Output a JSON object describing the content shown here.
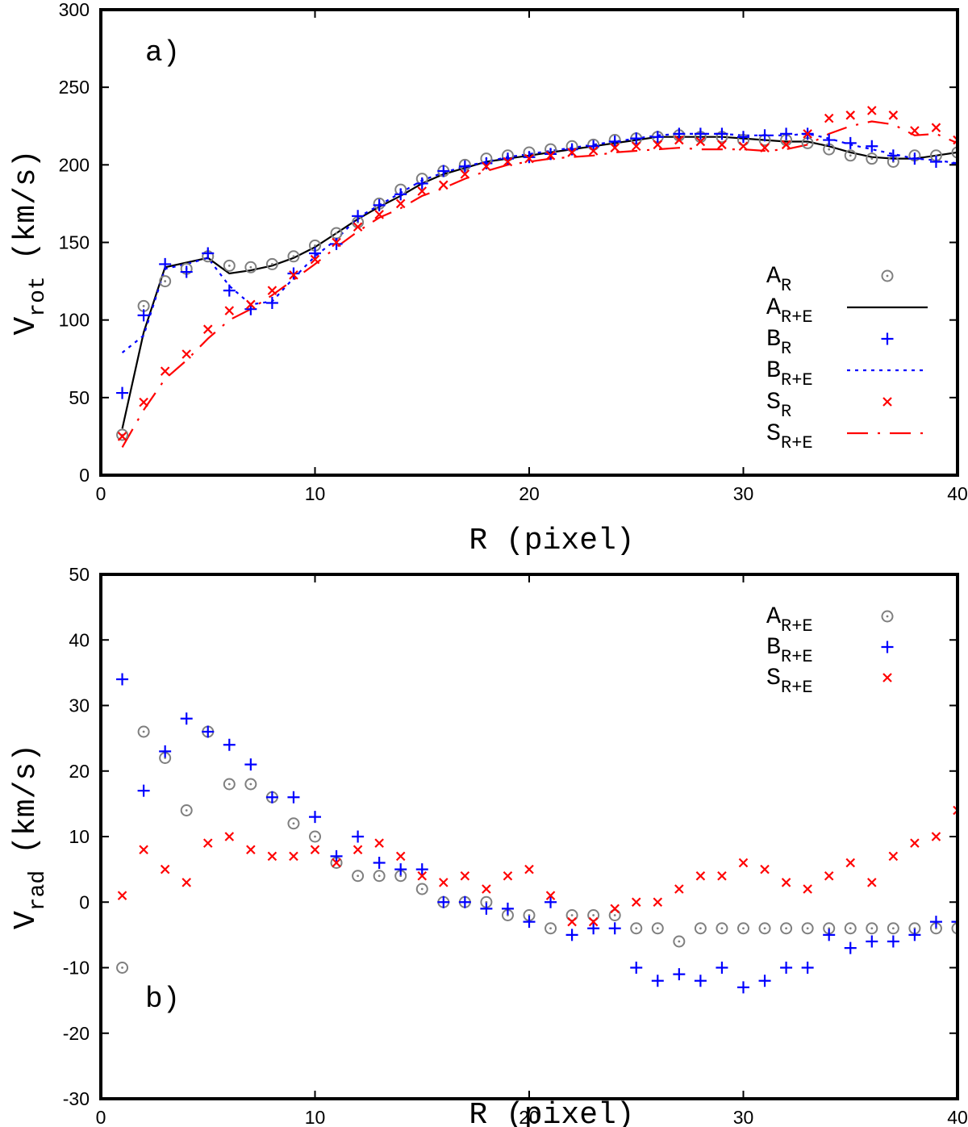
{
  "colors": {
    "A": "#7f7f7f",
    "A_line": "#000000",
    "B": "#0000ff",
    "S": "#ff0000"
  },
  "chart_data": [
    {
      "type": "line",
      "panel_label": "a)",
      "xlabel": "R (pixel)",
      "ylabel_main": "V",
      "ylabel_sub": "rot",
      "ylabel_unit": "(km/s)",
      "xlim": [
        0,
        40
      ],
      "ylim": [
        0,
        300
      ],
      "xticks": [
        0,
        10,
        20,
        30,
        40
      ],
      "yticks": [
        0,
        50,
        100,
        150,
        200,
        250,
        300
      ],
      "legend_position": "right",
      "x": [
        1,
        2,
        3,
        4,
        5,
        6,
        7,
        8,
        9,
        10,
        11,
        12,
        13,
        14,
        15,
        16,
        17,
        18,
        19,
        20,
        21,
        22,
        23,
        24,
        25,
        26,
        27,
        28,
        29,
        30,
        31,
        32,
        33,
        34,
        35,
        36,
        37,
        38,
        39,
        40
      ],
      "series": [
        {
          "name": "A_R",
          "label_main": "A",
          "label_sub": "R",
          "style": "circle",
          "color_key": "A",
          "values": [
            26,
            109,
            125,
            133,
            141,
            135,
            134,
            136,
            141,
            148,
            156,
            163,
            175,
            184,
            191,
            196,
            200,
            204,
            206,
            208,
            210,
            212,
            213,
            216,
            217,
            218,
            219,
            218,
            218,
            216,
            216,
            216,
            214,
            210,
            206,
            204,
            202,
            206,
            206,
            208
          ]
        },
        {
          "name": "A_R+E",
          "label_main": "A",
          "label_sub": "R+E",
          "style": "solid",
          "color_key": "A_line",
          "values": [
            30,
            92,
            134,
            137,
            140,
            130,
            132,
            135,
            140,
            147,
            156,
            165,
            173,
            180,
            188,
            194,
            198,
            202,
            204,
            206,
            208,
            210,
            212,
            214,
            216,
            218,
            218,
            218,
            218,
            217,
            216,
            215,
            215,
            212,
            208,
            205,
            204,
            204,
            206,
            208
          ]
        },
        {
          "name": "B_R",
          "label_main": "B",
          "label_sub": "R",
          "style": "plus",
          "color_key": "B",
          "values": [
            53,
            103,
            136,
            131,
            143,
            119,
            107,
            111,
            130,
            143,
            149,
            167,
            174,
            181,
            188,
            196,
            199,
            201,
            204,
            205,
            207,
            210,
            212,
            215,
            217,
            218,
            220,
            220,
            220,
            218,
            219,
            220,
            220,
            216,
            214,
            212,
            206,
            204,
            202,
            201
          ]
        },
        {
          "name": "B_R+E",
          "label_main": "B",
          "label_sub": "R+E",
          "style": "dotted",
          "color_key": "B",
          "values": [
            79,
            90,
            133,
            136,
            140,
            122,
            110,
            112,
            127,
            141,
            152,
            166,
            174,
            182,
            190,
            195,
            199,
            202,
            205,
            207,
            209,
            211,
            213,
            215,
            217,
            219,
            220,
            220,
            220,
            219,
            219,
            219,
            220,
            217,
            213,
            210,
            207,
            204,
            203,
            201
          ]
        },
        {
          "name": "S_R",
          "label_main": "S",
          "label_sub": "R",
          "style": "cross",
          "color_key": "S",
          "values": [
            25,
            47,
            67,
            78,
            94,
            106,
            110,
            119,
            129,
            139,
            150,
            160,
            168,
            175,
            183,
            187,
            194,
            199,
            202,
            204,
            206,
            208,
            209,
            211,
            212,
            213,
            216,
            215,
            213,
            212,
            211,
            213,
            220,
            230,
            232,
            235,
            232,
            222,
            224,
            216
          ]
        },
        {
          "name": "S_R+E",
          "label_main": "S",
          "label_sub": "R+E",
          "style": "dashed",
          "color_key": "S",
          "values": [
            18,
            42,
            62,
            74,
            88,
            100,
            107,
            116,
            126,
            136,
            147,
            157,
            166,
            172,
            180,
            185,
            191,
            196,
            200,
            202,
            204,
            205,
            206,
            208,
            209,
            210,
            211,
            210,
            210,
            210,
            209,
            210,
            213,
            220,
            225,
            228,
            226,
            219,
            220,
            214
          ]
        }
      ]
    },
    {
      "type": "scatter",
      "panel_label": "b)",
      "xlabel": "R (pixel)",
      "ylabel_main": "V",
      "ylabel_sub": "rad",
      "ylabel_unit": "(km/s)",
      "xlim": [
        0,
        40
      ],
      "ylim": [
        -30,
        50
      ],
      "xticks": [
        0,
        10,
        20,
        30,
        40
      ],
      "yticks": [
        -30,
        -20,
        -10,
        0,
        10,
        20,
        30,
        40,
        50
      ],
      "legend_position": "top-right",
      "x": [
        1,
        2,
        3,
        4,
        5,
        6,
        7,
        8,
        9,
        10,
        11,
        12,
        13,
        14,
        15,
        16,
        17,
        18,
        19,
        20,
        21,
        22,
        23,
        24,
        25,
        26,
        27,
        28,
        29,
        30,
        31,
        32,
        33,
        34,
        35,
        36,
        37,
        38,
        39,
        40
      ],
      "series": [
        {
          "name": "A_R+E",
          "label_main": "A",
          "label_sub": "R+E",
          "style": "circle",
          "color_key": "A",
          "values": [
            -10,
            26,
            22,
            14,
            26,
            18,
            18,
            16,
            12,
            10,
            6,
            4,
            4,
            4,
            2,
            0,
            0,
            0,
            -2,
            -2,
            -4,
            -2,
            -2,
            -2,
            -4,
            -4,
            -6,
            -4,
            -4,
            -4,
            -4,
            -4,
            -4,
            -4,
            -4,
            -4,
            -4,
            -4,
            -4,
            -4
          ]
        },
        {
          "name": "B_R+E",
          "label_main": "B",
          "label_sub": "R+E",
          "style": "plus",
          "color_key": "B",
          "values": [
            34,
            17,
            23,
            28,
            26,
            24,
            21,
            16,
            16,
            13,
            7,
            10,
            6,
            5,
            5,
            0,
            0,
            -1,
            -1,
            -3,
            0,
            -5,
            -4,
            -4,
            -10,
            -12,
            -11,
            -12,
            -10,
            -13,
            -12,
            -10,
            -10,
            -5,
            -7,
            -6,
            -6,
            -5,
            -3,
            -3
          ]
        },
        {
          "name": "S_R+E",
          "label_main": "S",
          "label_sub": "R+E",
          "style": "cross",
          "color_key": "S",
          "values": [
            1,
            8,
            5,
            3,
            9,
            10,
            8,
            7,
            7,
            8,
            6,
            8,
            9,
            7,
            4,
            3,
            4,
            2,
            4,
            5,
            1,
            -3,
            -3,
            -1,
            0,
            0,
            2,
            4,
            4,
            6,
            5,
            3,
            2,
            4,
            6,
            3,
            7,
            9,
            10,
            14
          ]
        }
      ]
    }
  ]
}
